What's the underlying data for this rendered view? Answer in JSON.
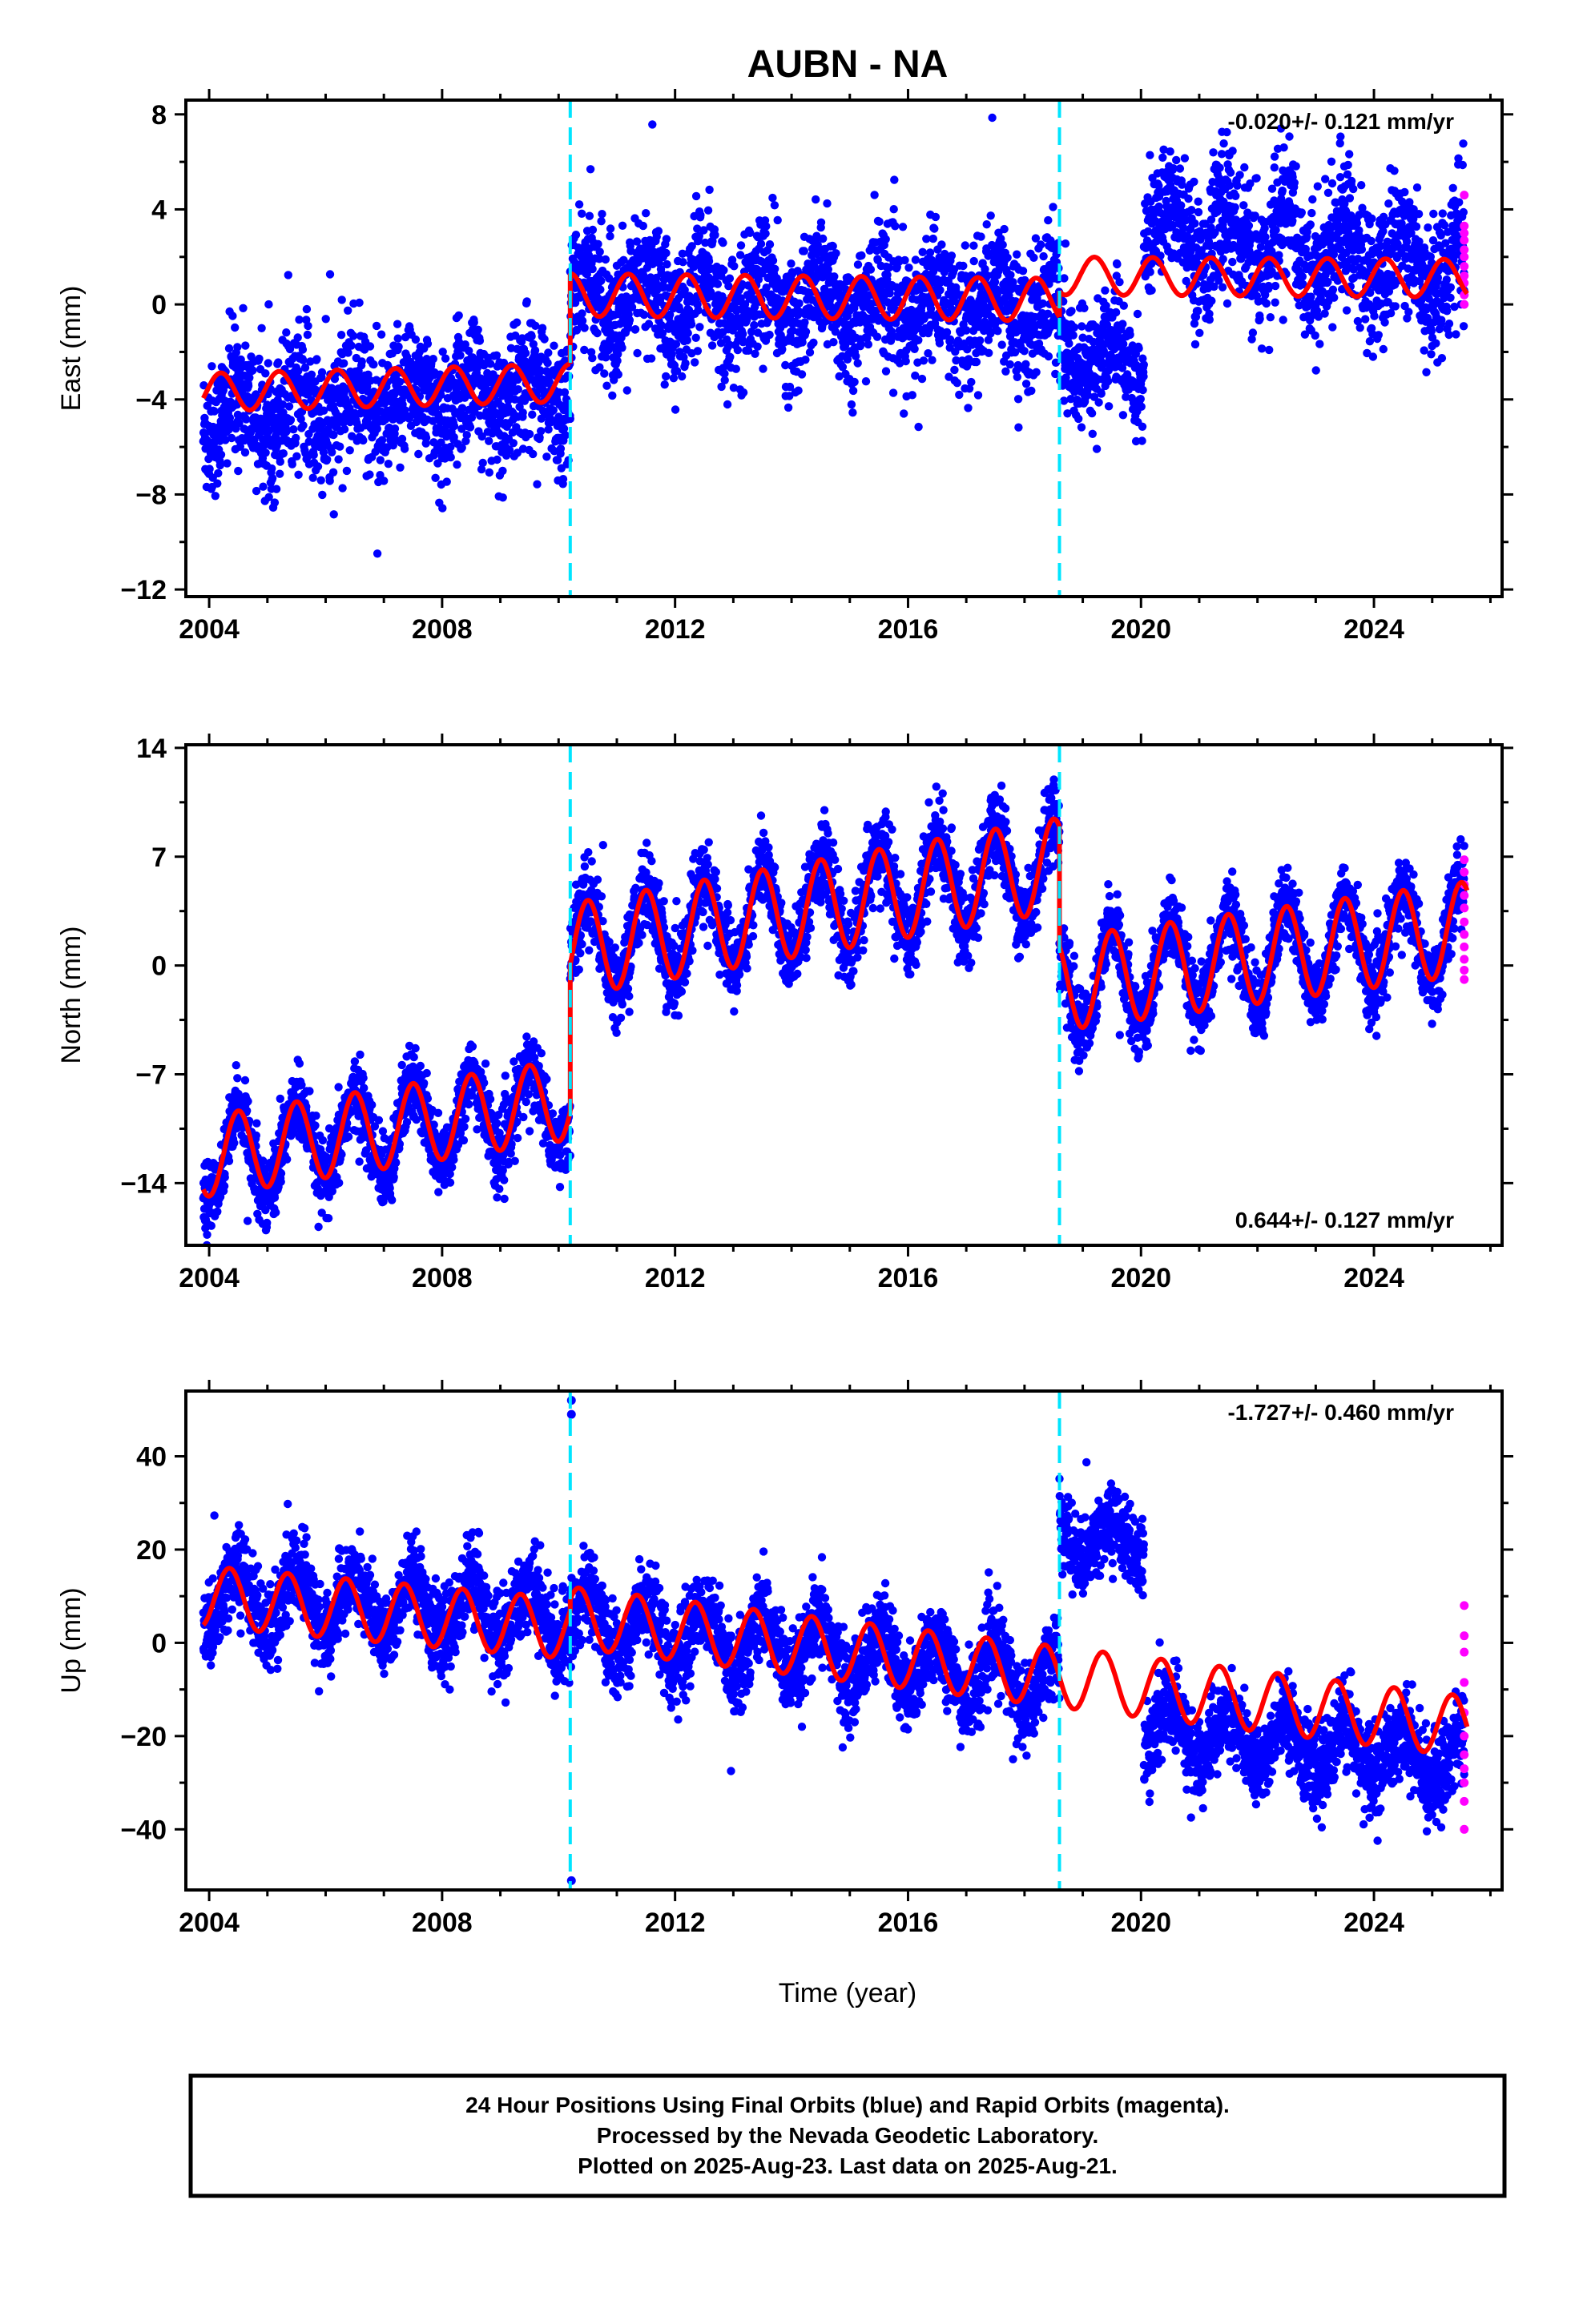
{
  "title": "AUBN - NA",
  "xlabel": "Time (year)",
  "colors": {
    "final_orbits": "#0000ff",
    "rapid_orbits": "#ff00ff",
    "model": "#ff0000",
    "offset_lines": "#00e5ff",
    "axes": "#000000"
  },
  "footer": {
    "line1": "24 Hour Positions Using Final Orbits (blue) and Rapid Orbits (magenta).",
    "line2": "Processed by the Nevada Geodetic Laboratory.",
    "line3": "Plotted on 2025-Aug-23. Last data on 2025-Aug-21."
  },
  "chart_data": [
    {
      "type": "scatter",
      "name": "East",
      "ylabel": "East (mm)",
      "rate_label": "-0.020+/- 0.121 mm/yr",
      "rate_position": "top-right",
      "xlim": [
        2003.6,
        2026.2
      ],
      "ylim": [
        -12.3,
        8.6
      ],
      "xticks": [
        2004,
        2008,
        2012,
        2016,
        2020,
        2024
      ],
      "xtick_labels": [
        "2004",
        "2008",
        "2012",
        "2016",
        "2020",
        "2024"
      ],
      "yticks": [
        -12,
        -8,
        -4,
        0,
        4,
        8
      ],
      "ytick_labels": [
        "−12",
        "−8",
        "−4",
        "0",
        "4",
        "8"
      ],
      "offset_lines": [
        2010.2,
        2018.6
      ],
      "segments": [
        {
          "start": 2003.9,
          "end": 2010.2,
          "level_start": -4.6,
          "level_end": -3.7,
          "seasonal_amp": 0.9,
          "scatter": 1.4
        },
        {
          "start": 2010.2,
          "end": 2018.6,
          "level_start": 0.3,
          "level_end": -0.2,
          "seasonal_amp": 0.9,
          "scatter": 1.4
        },
        {
          "start": 2018.6,
          "end": 2020.05,
          "level_start": -2.2,
          "level_end": -2.4,
          "seasonal_amp": 0.8,
          "scatter": 1.2
        },
        {
          "start": 2020.05,
          "end": 2025.55,
          "level_start": 3.2,
          "level_end": 1.5,
          "seasonal_amp": 1.2,
          "scatter": 1.4
        }
      ],
      "model_segments": [
        {
          "start": 2003.9,
          "end": 2010.2,
          "level_start": -3.7,
          "level_end": -3.3,
          "amp": 0.8,
          "phase": 0.3
        },
        {
          "start": 2010.2,
          "end": 2018.6,
          "level_start": 0.4,
          "level_end": 0.2,
          "amp": 0.9,
          "phase": 0.3
        },
        {
          "start": 2018.6,
          "end": 2025.6,
          "level_start": 1.2,
          "level_end": 1.1,
          "amp": 0.8,
          "phase": 0.3
        }
      ],
      "rapid_points": {
        "x": 2025.55,
        "y": [
          4.6,
          3.3,
          3.0,
          2.7,
          2.3,
          2.0,
          1.6,
          1.2,
          0.9,
          0.4,
          0.0
        ]
      }
    },
    {
      "type": "scatter",
      "name": "North",
      "ylabel": "North (mm)",
      "rate_label": "0.644+/- 0.127 mm/yr",
      "rate_position": "bottom-right",
      "xlim": [
        2003.6,
        2026.2
      ],
      "ylim": [
        -18.0,
        14.2
      ],
      "xticks": [
        2004,
        2008,
        2012,
        2016,
        2020,
        2024
      ],
      "xtick_labels": [
        "2004",
        "2008",
        "2012",
        "2016",
        "2020",
        "2024"
      ],
      "yticks": [
        -14,
        -7,
        0,
        7,
        14
      ],
      "ytick_labels": [
        "−14",
        "−7",
        "0",
        "7",
        "14"
      ],
      "offset_lines": [
        2010.2,
        2018.6
      ],
      "segments": [
        {
          "start": 2003.9,
          "end": 2010.2,
          "level_start": -12.5,
          "level_end": -8.8,
          "seasonal_amp": 2.6,
          "scatter": 1.2
        },
        {
          "start": 2010.2,
          "end": 2018.6,
          "level_start": 1.0,
          "level_end": 6.5,
          "seasonal_amp": 3.0,
          "scatter": 1.3
        },
        {
          "start": 2018.6,
          "end": 2025.55,
          "level_start": -1.2,
          "level_end": 2.3,
          "seasonal_amp": 3.0,
          "scatter": 1.2
        }
      ],
      "model_segments": [
        {
          "start": 2003.9,
          "end": 2010.2,
          "level_start": -12.3,
          "level_end": -8.6,
          "amp": 2.6,
          "phase": 0.0
        },
        {
          "start": 2010.2,
          "end": 2018.6,
          "level_start": 1.0,
          "level_end": 6.5,
          "amp": 3.0,
          "phase": 0.0
        },
        {
          "start": 2018.6,
          "end": 2025.6,
          "level_start": -1.2,
          "level_end": 2.4,
          "amp": 3.0,
          "phase": 0.0
        }
      ],
      "rapid_points": {
        "x": 2025.55,
        "y": [
          6.8,
          6.0,
          5.2,
          4.5,
          3.7,
          2.8,
          2.0,
          1.2,
          0.4,
          -0.3,
          -0.9
        ]
      }
    },
    {
      "type": "scatter",
      "name": "Up",
      "ylabel": "Up (mm)",
      "rate_label": "-1.727+/- 0.460 mm/yr",
      "rate_position": "top-right",
      "xlim": [
        2003.6,
        2026.2
      ],
      "ylim": [
        -53,
        54
      ],
      "xticks": [
        2004,
        2008,
        2012,
        2016,
        2020,
        2024
      ],
      "xtick_labels": [
        "2004",
        "2008",
        "2012",
        "2016",
        "2020",
        "2024"
      ],
      "yticks": [
        -40,
        -20,
        0,
        20,
        40
      ],
      "ytick_labels": [
        "−40",
        "−20",
        "0",
        "20",
        "40"
      ],
      "offset_lines": [
        2010.2,
        2018.6
      ],
      "segments": [
        {
          "start": 2003.9,
          "end": 2010.2,
          "level_start": 10.0,
          "level_end": 5.5,
          "seasonal_amp": 6.5,
          "scatter": 4.5
        },
        {
          "start": 2010.2,
          "end": 2018.6,
          "level_start": 5.0,
          "level_end": -9.0,
          "seasonal_amp": 6.5,
          "scatter": 4.5
        },
        {
          "start": 2018.6,
          "end": 2020.05,
          "level_start": 22.0,
          "level_end": 22.0,
          "seasonal_amp": 4.0,
          "scatter": 4.0
        },
        {
          "start": 2020.05,
          "end": 2025.55,
          "level_start": -19.0,
          "level_end": -25.5,
          "seasonal_amp": 5.5,
          "scatter": 4.5
        }
      ],
      "model_segments": [
        {
          "start": 2003.9,
          "end": 2010.2,
          "level_start": 10.0,
          "level_end": 3.0,
          "amp": 6.5,
          "phase": 0.15
        },
        {
          "start": 2010.2,
          "end": 2025.6,
          "level_start": 5.5,
          "level_end": -18.0,
          "amp": 6.5,
          "phase": 0.15
        }
      ],
      "outliers": [
        [
          2010.22,
          52
        ],
        [
          2010.22,
          49
        ],
        [
          2010.22,
          -51
        ]
      ],
      "rapid_points": {
        "x": 2025.55,
        "y": [
          8.0,
          1.5,
          -2.0,
          -8.5,
          -15.0,
          -20.0,
          -24.0,
          -27.0,
          -30.0,
          -34.0,
          -40.0
        ]
      }
    }
  ]
}
